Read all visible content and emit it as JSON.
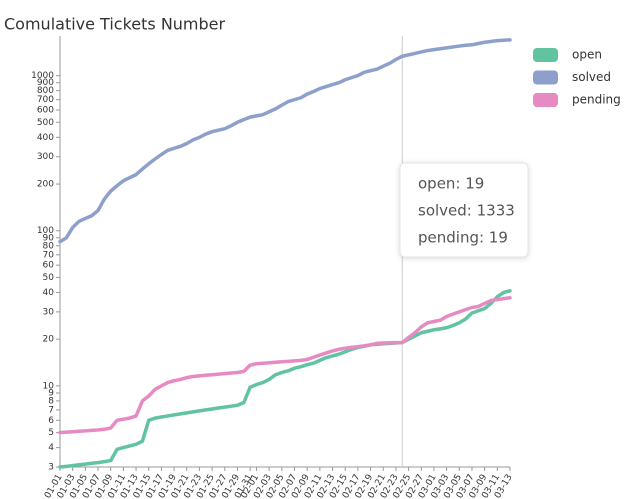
{
  "chart_data": {
    "type": "line",
    "title": "Comulative Tickets Number",
    "log_scale": true,
    "ylim": [
      3,
      1800
    ],
    "yticks": [
      3,
      4,
      5,
      6,
      7,
      8,
      9,
      10,
      20,
      30,
      40,
      50,
      60,
      70,
      80,
      90,
      100,
      200,
      300,
      400,
      500,
      600,
      700,
      800,
      900,
      1000
    ],
    "legend": "top-right",
    "categories": [
      "01-01",
      null,
      "01-03",
      null,
      "01-05",
      null,
      "01-07",
      null,
      "01-09",
      null,
      "01-11",
      null,
      "01-13",
      null,
      "01-15",
      null,
      "01-17",
      null,
      "01-19",
      null,
      "01-21",
      null,
      "01-23",
      null,
      "01-25",
      null,
      "01-27",
      null,
      "01-29",
      null,
      "01-31",
      "02-01",
      null,
      "02-03",
      null,
      "02-05",
      null,
      "02-07",
      null,
      "02-09",
      null,
      "02-11",
      null,
      "02-13",
      null,
      "02-15",
      null,
      "02-17",
      null,
      "02-19",
      null,
      "02-21",
      null,
      "02-23",
      null,
      "02-25",
      null,
      "02-27",
      null,
      "03-01",
      null,
      "03-03",
      null,
      "03-05",
      null,
      "03-07",
      null,
      "03-09",
      null,
      "03-11",
      null,
      "03-13"
    ],
    "series": [
      {
        "name": "open",
        "color": "#61c3a0",
        "values": [
          3,
          3.03,
          3.06,
          3.1,
          3.13,
          3.17,
          3.2,
          3.25,
          3.3,
          3.9,
          4.0,
          4.1,
          4.2,
          4.4,
          6.0,
          6.2,
          6.3,
          6.4,
          6.5,
          6.6,
          6.7,
          6.8,
          6.9,
          7.0,
          7.1,
          7.2,
          7.3,
          7.4,
          7.5,
          7.8,
          9.8,
          10.2,
          10.5,
          11,
          11.8,
          12.2,
          12.5,
          13,
          13.3,
          13.7,
          14,
          14.6,
          15.2,
          15.6,
          16,
          16.6,
          17.2,
          17.7,
          18,
          18.4,
          18.5,
          18.7,
          18.8,
          18.9,
          19,
          20,
          21,
          22,
          22.5,
          23,
          23.3,
          23.7,
          24.5,
          25.5,
          27,
          29.5,
          30.5,
          31.5,
          34,
          37.5,
          40,
          41
        ]
      },
      {
        "name": "solved",
        "color": "#8da0cb",
        "values": [
          85,
          90,
          105,
          115,
          120,
          125,
          135,
          160,
          180,
          195,
          210,
          220,
          230,
          250,
          270,
          290,
          310,
          330,
          340,
          350,
          365,
          385,
          400,
          420,
          435,
          445,
          455,
          475,
          500,
          520,
          540,
          550,
          560,
          585,
          610,
          645,
          680,
          700,
          720,
          760,
          790,
          825,
          850,
          875,
          900,
          940,
          970,
          1000,
          1050,
          1075,
          1100,
          1150,
          1200,
          1270,
          1333,
          1360,
          1390,
          1420,
          1450,
          1470,
          1490,
          1510,
          1530,
          1550,
          1570,
          1580,
          1610,
          1640,
          1660,
          1680,
          1690,
          1700
        ]
      },
      {
        "name": "pending",
        "color": "#e78ac3",
        "values": [
          5,
          5.03,
          5.06,
          5.1,
          5.13,
          5.17,
          5.2,
          5.25,
          5.35,
          6,
          6.1,
          6.2,
          6.4,
          8,
          8.6,
          9.5,
          10,
          10.5,
          10.8,
          11,
          11.3,
          11.5,
          11.6,
          11.7,
          11.8,
          11.9,
          12,
          12.1,
          12.2,
          12.4,
          13.6,
          13.9,
          14,
          14.1,
          14.2,
          14.3,
          14.4,
          14.5,
          14.6,
          14.8,
          15.3,
          15.8,
          16.3,
          16.8,
          17.2,
          17.5,
          17.7,
          17.9,
          18.1,
          18.4,
          18.8,
          18.9,
          18.95,
          19,
          19,
          20.5,
          22,
          24,
          25.5,
          26,
          26.5,
          28,
          29,
          30,
          31,
          32,
          32.5,
          34,
          35.5,
          36,
          36.5,
          37
        ]
      }
    ],
    "tooltip": [
      "open: 19",
      "solved: 1333",
      "pending: 19"
    ]
  }
}
